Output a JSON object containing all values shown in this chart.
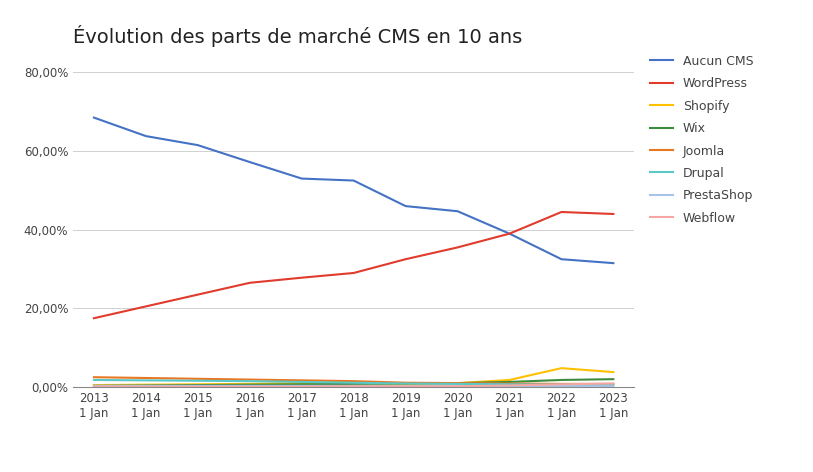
{
  "title": "Évolution des parts de marché CMS en 10 ans",
  "years": [
    2013,
    2014,
    2015,
    2016,
    2017,
    2018,
    2019,
    2020,
    2021,
    2022,
    2023
  ],
  "series": [
    {
      "name": "Aucun CMS",
      "color": "#4472C4",
      "values": [
        0.685,
        0.638,
        0.615,
        0.572,
        0.53,
        0.525,
        0.46,
        0.447,
        0.39,
        0.325,
        0.315
      ]
    },
    {
      "name": "WordPress",
      "color": "#E03B2C",
      "values": [
        0.175,
        0.205,
        0.235,
        0.265,
        0.278,
        0.29,
        0.325,
        0.355,
        0.39,
        0.445,
        0.44
      ]
    },
    {
      "name": "Shopify",
      "color": "#FFC000",
      "values": [
        0.005,
        0.006,
        0.007,
        0.008,
        0.01,
        0.012,
        0.008,
        0.01,
        0.018,
        0.048,
        0.038
      ]
    },
    {
      "name": "Wix",
      "color": "#3E8B3E",
      "values": [
        0.003,
        0.004,
        0.005,
        0.006,
        0.007,
        0.008,
        0.009,
        0.01,
        0.013,
        0.018,
        0.02
      ]
    },
    {
      "name": "Joomla",
      "color": "#E87722",
      "values": [
        0.025,
        0.023,
        0.021,
        0.019,
        0.017,
        0.015,
        0.011,
        0.01,
        0.009,
        0.008,
        0.008
      ]
    },
    {
      "name": "Drupal",
      "color": "#5BC8C8",
      "values": [
        0.018,
        0.017,
        0.016,
        0.015,
        0.013,
        0.011,
        0.009,
        0.008,
        0.007,
        0.006,
        0.005
      ]
    },
    {
      "name": "PrestaShop",
      "color": "#A9C4E9",
      "values": [
        0.003,
        0.003,
        0.003,
        0.003,
        0.003,
        0.003,
        0.002,
        0.002,
        0.002,
        0.002,
        0.002
      ]
    },
    {
      "name": "Webflow",
      "color": "#F4A7A3",
      "values": [
        0.001,
        0.001,
        0.001,
        0.001,
        0.001,
        0.002,
        0.002,
        0.002,
        0.004,
        0.007,
        0.009
      ]
    }
  ],
  "ylim": [
    0.0,
    0.84
  ],
  "yticks": [
    0.0,
    0.2,
    0.4,
    0.6,
    0.8
  ],
  "ytick_labels": [
    "0,00%",
    "20,00%",
    "40,00%",
    "60,00%",
    "80,00%"
  ],
  "xlim_left": 2012.6,
  "xlim_right": 2023.4,
  "background_color": "#ffffff",
  "grid_color": "#d0d0d0",
  "title_fontsize": 14,
  "legend_fontsize": 9,
  "tick_fontsize": 8.5
}
